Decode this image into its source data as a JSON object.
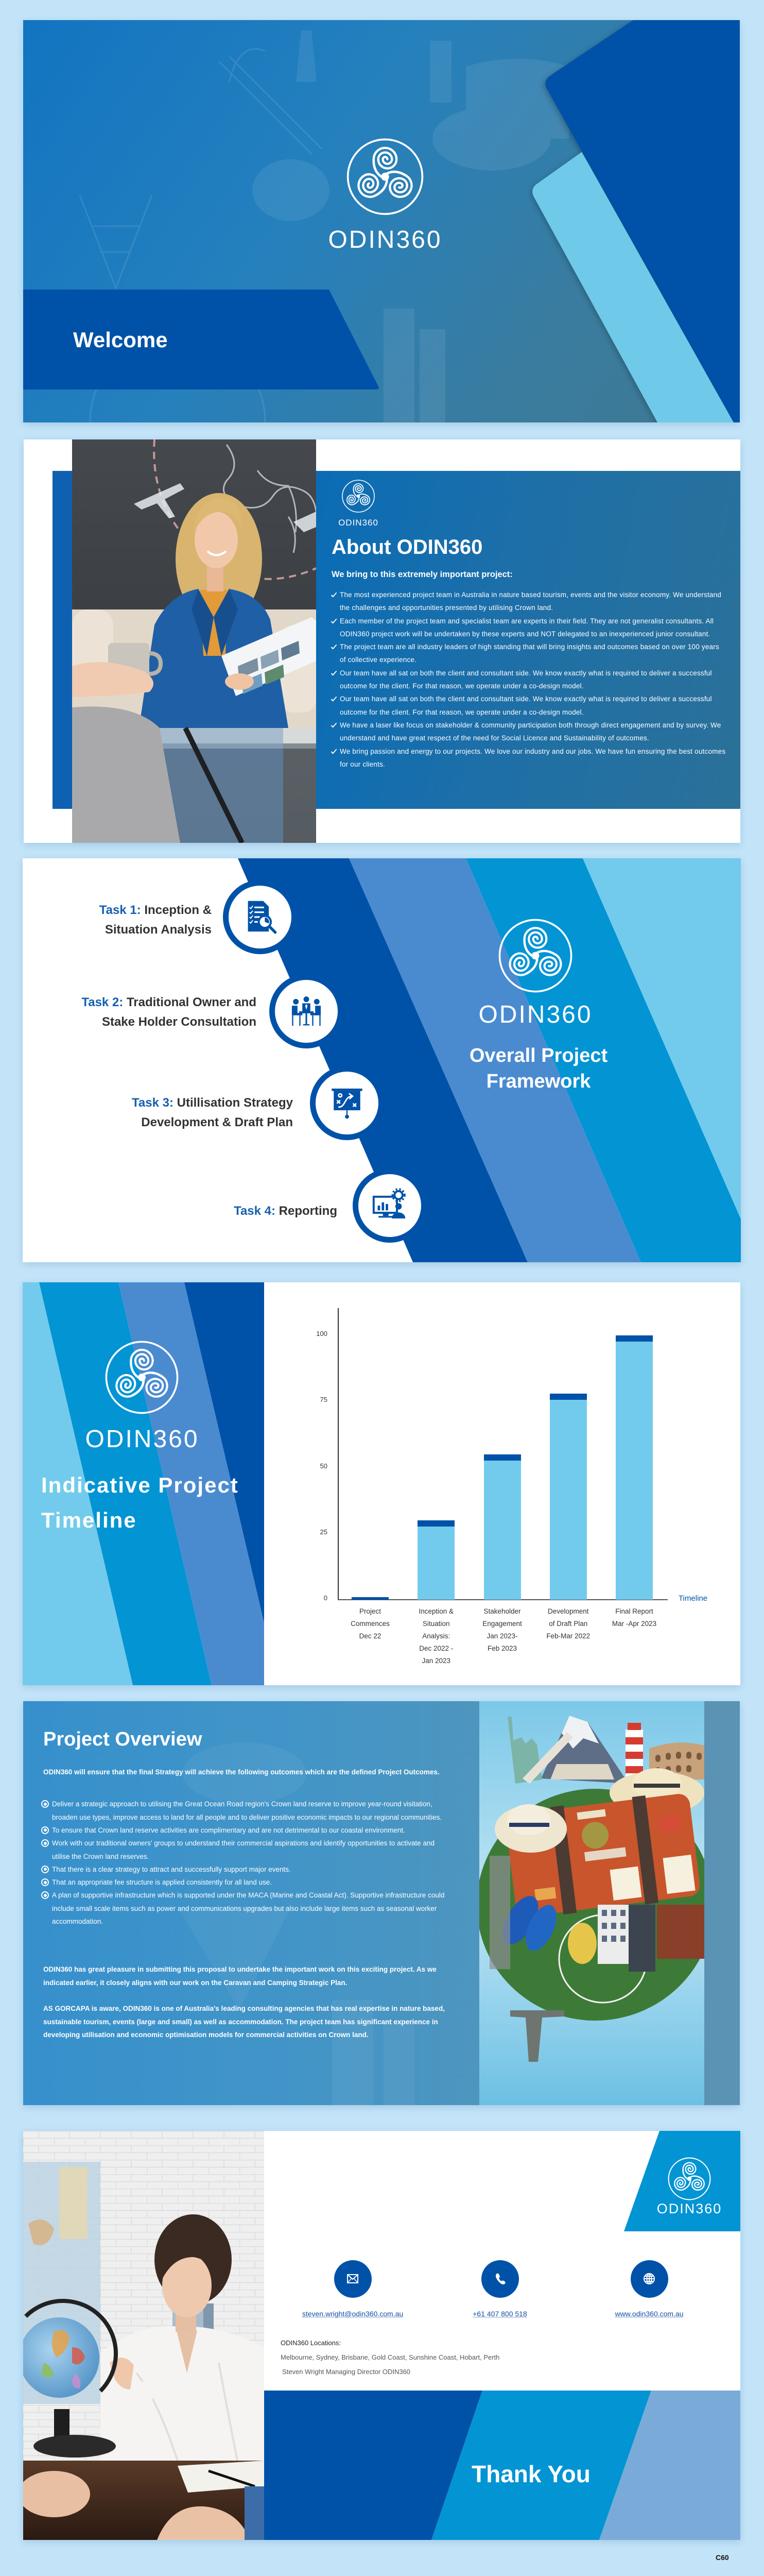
{
  "page": {
    "footer_code": "C60"
  },
  "theme": {
    "page_bg": "#c3e4f8",
    "dark_blue": "#0052a8",
    "medium_blue": "#4a8bd0",
    "bright_blue": "#0394d4",
    "light_blue": "#72cbec",
    "steel_blue": "#7aabd8",
    "task_label_blue": "#1560b0",
    "text_dark": "#333333"
  },
  "brand": {
    "name": "ODIN360",
    "logo_icon": "triskele-logo-icon"
  },
  "welcome": {
    "logo_text": "ODIN360",
    "title": "Welcome"
  },
  "about": {
    "logo_text": "ODIN360",
    "title": "About ODIN360",
    "intro": "We bring to this extremely important project:",
    "bullet_icon": "checkmark-icon",
    "bullets": [
      "The most experienced project team in Australia in nature based tourism, events and the visitor economy. We understand the challenges and opportunities presented by utilising Crown land.",
      "Each member of the project team and specialist team are experts in their field. They are not generalist consultants. All ODIN360 project work will be undertaken by these experts and NOT delegated to an inexperienced junior consultant.",
      "The project team are all industry leaders of high standing that will bring insights and outcomes based on over 100 years of collective experience.",
      "Our team have all sat on both the client and consultant side. We know exactly what is required to deliver a successful outcome for the client. For that reason, we operate under a co-design model.",
      "Our team have all sat on both the client and consultant side. We know exactly what is required to deliver a successful outcome for the client. For that reason, we operate under a co-design model.",
      "We have a laser like focus on stakeholder & community participation both through direct engagement and by survey.  We understand and have great respect of the need for Social Licence and Sustainability of outcomes.",
      "We bring passion and energy to our projects. We love our industry and our jobs. We have fun ensuring the best outcomes for our clients."
    ]
  },
  "framework": {
    "logo_text": "ODIN360",
    "title_line1": "Overall Project",
    "title_line2": "Framework",
    "tasks": [
      {
        "label": "Task 1:",
        "line1": "Inception &",
        "line2": "Situation Analysis",
        "icon": "document-analysis-icon"
      },
      {
        "label": "Task 2:",
        "line1": "Traditional Owner and",
        "line2": "Stake Holder Consultation",
        "icon": "meeting-icon"
      },
      {
        "label": "Task 3:",
        "line1": "Utillisation Strategy",
        "line2": "Development & Draft Plan",
        "icon": "strategy-board-icon"
      },
      {
        "label": "Task 4:",
        "line1": "Reporting",
        "line2": "",
        "icon": "reporting-monitor-icon"
      }
    ]
  },
  "timeline": {
    "logo_text": "ODIN360",
    "title_line1": "Indicative Project",
    "title_line2": "Timeline"
  },
  "overview": {
    "title": "Project Overview",
    "intro": "ODIN360 will ensure that the final Strategy will achieve the following outcomes which are the defined Project Outcomes.",
    "bullet_icon": "radio-bullet-icon",
    "bullets": [
      "Deliver a strategic approach to utilising the Great Ocean Road region's Crown land reserve to improve year-round visitation, broaden use types, improve access to land for all people and to deliver positive economic impacts to our regional communities.",
      "To ensure that Crown land reserve activities are complimentary and are not detrimental to our coastal environment.",
      "Work with our traditional owners' groups to understand their commercial aspirations and identify opportunities to activate and utilise the Crown land reserves.",
      "That there is a clear strategy to attract and successfully support major events.",
      "That an appropriate fee structure is applied consistently for all land use.",
      "A plan of supportive infrastructure which is supported under the MACA (Marine and Coastal Act). Supportive infrastructure could include small scale items such as power and communications upgrades but also include large items such as seasonal worker accommodation."
    ],
    "paragraphs": [
      "ODIN360 has great pleasure in submitting this proposal to undertake the important work on this exciting project. As we indicated earlier, it closely aligns with our work on the Caravan and Camping Strategic Plan.",
      "AS GORCAPA is aware, ODIN360 is one of Australia's leading consulting agencies that has real expertise in nature based, sustainable tourism, events (large and small) as well as accommodation. The project team has significant experience in developing utilisation and economic optimisation models for commercial activities on Crown land."
    ]
  },
  "thank_you": {
    "logo_text": "ODIN360",
    "title": "Thank You",
    "contacts": [
      {
        "icon": "envelope-icon",
        "label": "steven.wright@odin360.com.au"
      },
      {
        "icon": "phone-icon",
        "label": "+61 407 800 518"
      },
      {
        "icon": "globe-icon",
        "label": "www.odin360.com.au"
      }
    ],
    "locations_label": "ODIN360 Locations:",
    "locations": "Melbourne, Sydney, Brisbane, Gold Coast, Sunshine Coast, Hobart, Perth",
    "signature": "Steven Wright Managing Director ODIN360"
  },
  "chart_data": {
    "type": "bar",
    "stacked": true,
    "title": "Indicative Project Timeline",
    "categories": [
      "Project Commences Dec 22",
      "Inception & Situation Analysis: Dec 2022 - Jan 2023",
      "Stakeholder Engagement Jan 2023- Feb 2023",
      "Development of Draft Plan Feb-Mar 2022",
      "Final Report Mar -Apr 2023"
    ],
    "category_lines": [
      [
        "Project",
        "Commences",
        "Dec 22"
      ],
      [
        "Inception &",
        "Situation",
        "Analysis:",
        "Dec 2022 -",
        "Jan 2023"
      ],
      [
        "Stakeholder",
        "Engagement",
        "Jan 2023-",
        "Feb 2023"
      ],
      [
        "Development",
        "of Draft Plan",
        "Feb-Mar 2022"
      ],
      [
        "Final Report",
        "Mar -Apr 2023"
      ]
    ],
    "values": [
      1,
      30,
      55,
      78,
      100
    ],
    "series": [
      {
        "name": "progress",
        "color": "#72cbec",
        "values": [
          0,
          28,
          53,
          76,
          98
        ]
      },
      {
        "name": "milestone cap",
        "color": "#0052a8",
        "values": [
          1,
          2,
          2,
          2,
          2
        ]
      }
    ],
    "xlabel": "Timeline",
    "ylabel": "",
    "yticks": [
      0,
      25,
      50,
      75,
      100
    ],
    "ylim": [
      0,
      100
    ],
    "grid": false
  }
}
